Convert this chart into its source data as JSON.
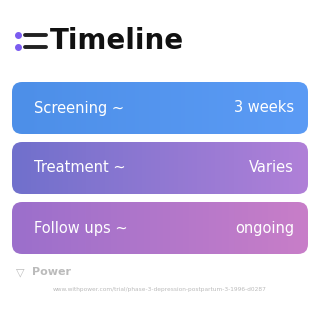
{
  "title": "Timeline",
  "bg_color": "#ffffff",
  "icon_color": "#7B5CF0",
  "title_color": "#111111",
  "title_fontsize": 20,
  "rows": [
    {
      "label": "Screening ~",
      "value": "3 weeks",
      "color_left": "#4D8FE8",
      "color_right": "#5B9BF5"
    },
    {
      "label": "Treatment ~",
      "value": "Varies",
      "color_left": "#7070CC",
      "color_right": "#B080D8"
    },
    {
      "label": "Follow ups ~",
      "value": "ongoing",
      "color_left": "#9B6FCC",
      "color_right": "#C87EC8"
    }
  ],
  "footer_text": "Power",
  "footer_url": "www.withpower.com/trial/phase-3-depression-postpartum-3-1996-d0287",
  "footer_color": "#bbbbbb",
  "card_text_color": "#ffffff",
  "card_label_fontsize": 10.5,
  "card_value_fontsize": 10.5
}
